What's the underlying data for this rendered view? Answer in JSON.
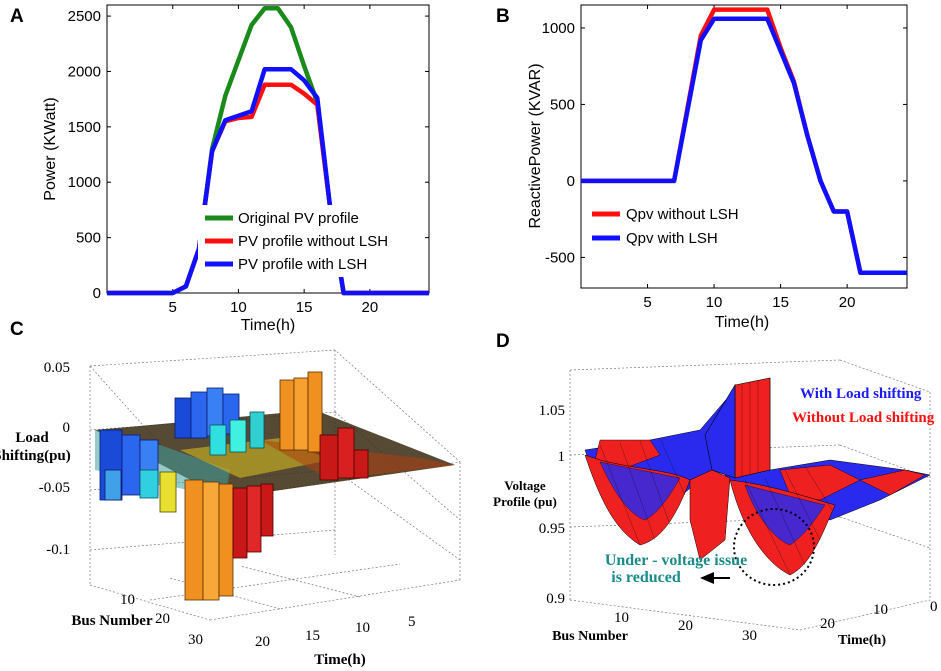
{
  "panels": {
    "a": "A",
    "b": "B",
    "c": "C",
    "d": "D"
  },
  "chart_data": [
    {
      "panel": "A",
      "type": "line",
      "xlabel": "Time(h)",
      "ylabel": "Power (KWatt)",
      "xlim": [
        0,
        24.5
      ],
      "ylim": [
        0,
        2600
      ],
      "xticks": [
        5,
        10,
        15,
        20
      ],
      "yticks": [
        0,
        500,
        1000,
        1500,
        2000,
        2500
      ],
      "legend_position": "bottom-center",
      "series": [
        {
          "name": "Original PV profile",
          "color": "#1a8a1a",
          "x": [
            0,
            5,
            6,
            7,
            8,
            9,
            10,
            11,
            12,
            13,
            14,
            15,
            16,
            17,
            18,
            19,
            20,
            21,
            22,
            23,
            24.5
          ],
          "y": [
            0,
            0,
            60,
            400,
            1300,
            1780,
            2100,
            2420,
            2570,
            2570,
            2400,
            2050,
            1720,
            750,
            0,
            0,
            0,
            0,
            0,
            0,
            0
          ]
        },
        {
          "name": "PV profile without LSH",
          "color": "#ff1010",
          "x": [
            0,
            5,
            6,
            7,
            8,
            9,
            10,
            11,
            12,
            13,
            14,
            15,
            16,
            17,
            18,
            19,
            20,
            21,
            22,
            23,
            24.5
          ],
          "y": [
            0,
            0,
            60,
            400,
            1280,
            1550,
            1580,
            1590,
            1880,
            1880,
            1880,
            1800,
            1700,
            750,
            0,
            0,
            0,
            0,
            0,
            0,
            0
          ]
        },
        {
          "name": "PV profile with LSH",
          "color": "#1010ff",
          "x": [
            0,
            5,
            6,
            7,
            8,
            9,
            10,
            11,
            12,
            13,
            14,
            15,
            16,
            17,
            18,
            19,
            20,
            21,
            22,
            23,
            24.5
          ],
          "y": [
            0,
            0,
            60,
            400,
            1280,
            1560,
            1600,
            1640,
            2020,
            2020,
            2020,
            1920,
            1760,
            750,
            0,
            0,
            0,
            0,
            0,
            0,
            0
          ]
        }
      ]
    },
    {
      "panel": "B",
      "type": "line",
      "xlabel": "Time(h)",
      "ylabel": "ReactivePower (KVAR)",
      "xlim": [
        0,
        24.5
      ],
      "ylim": [
        -700,
        1150
      ],
      "xticks": [
        5,
        10,
        15,
        20
      ],
      "yticks": [
        -500,
        0,
        500,
        1000
      ],
      "legend_position": "bottom-left",
      "series": [
        {
          "name": "Qpv without LSH",
          "color": "#ff1010",
          "x": [
            0,
            7,
            9,
            10,
            11,
            12,
            13,
            14,
            15,
            16,
            17,
            18,
            19,
            20,
            21,
            22,
            23,
            24.5
          ],
          "y": [
            0,
            0,
            950,
            1120,
            1120,
            1120,
            1120,
            1120,
            870,
            650,
            300,
            0,
            -200,
            -200,
            -600,
            -600,
            -600,
            -600
          ]
        },
        {
          "name": "Qpv with LSH",
          "color": "#1010ff",
          "x": [
            0,
            7,
            9,
            10,
            11,
            12,
            13,
            14,
            15,
            16,
            17,
            18,
            19,
            20,
            21,
            22,
            23,
            24.5
          ],
          "y": [
            0,
            0,
            920,
            1060,
            1060,
            1060,
            1060,
            1060,
            850,
            640,
            300,
            0,
            -200,
            -200,
            -600,
            -600,
            -600,
            -600
          ]
        }
      ]
    },
    {
      "panel": "C",
      "type": "bar3d",
      "zlabel_line1": "Load",
      "zlabel_line2": "Shifting(pu)",
      "xlabel": "Bus Number",
      "ylabel": "Time(h)",
      "zticks": [
        "0.05",
        "0",
        "-0.05",
        "-0.1"
      ],
      "xticks": [
        "10",
        "20",
        "30"
      ],
      "yticks": [
        "20",
        "15",
        "10",
        "5"
      ]
    },
    {
      "panel": "D",
      "type": "surface3d",
      "zlabel_line1": "Voltage",
      "zlabel_line2": "Profile (pu)",
      "xlabel": "Bus Number",
      "ylabel": "Time(h)",
      "zticks": [
        "1.05",
        "1",
        "0.95",
        "0.9"
      ],
      "xticks": [
        "10",
        "20",
        "30"
      ],
      "yticks": [
        "20",
        "10",
        "0"
      ],
      "legend": [
        {
          "name": "With Load shifting",
          "color": "#1a1aff"
        },
        {
          "name": "Without Load shifting",
          "color": "#ff1010"
        }
      ],
      "annotation_line1": "Under - voltage issue",
      "annotation_line2": "is reduced",
      "annotation_color": "#1a8a8a"
    }
  ]
}
